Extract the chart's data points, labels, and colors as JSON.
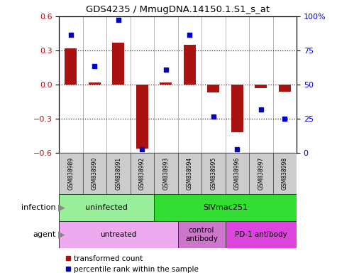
{
  "title": "GDS4235 / MmugDNA.14150.1.S1_s_at",
  "samples": [
    "GSM838989",
    "GSM838990",
    "GSM838991",
    "GSM838992",
    "GSM838993",
    "GSM838994",
    "GSM838995",
    "GSM838996",
    "GSM838997",
    "GSM838998"
  ],
  "bar_values": [
    0.32,
    0.02,
    0.37,
    -0.56,
    0.02,
    0.35,
    -0.07,
    -0.42,
    -0.03,
    -0.06
  ],
  "dot_values_left": [
    0.44,
    0.16,
    0.57,
    -0.57,
    0.13,
    0.44,
    -0.28,
    -0.57,
    -0.22,
    -0.3
  ],
  "bar_color": "#aa1111",
  "dot_color": "#0000cc",
  "ylim_left": [
    -0.6,
    0.6
  ],
  "ylim_right": [
    0,
    100
  ],
  "yticks_left": [
    -0.6,
    -0.3,
    0.0,
    0.3,
    0.6
  ],
  "yticks_right": [
    0,
    25,
    50,
    75,
    100
  ],
  "ytick_labels_right": [
    "0",
    "25",
    "50",
    "75",
    "100%"
  ],
  "hline_color": "#cc0000",
  "dotted_color": "#222222",
  "infection_groups": [
    {
      "label": "uninfected",
      "start": 0,
      "end": 3,
      "color": "#99ee99"
    },
    {
      "label": "SIVmac251",
      "start": 4,
      "end": 9,
      "color": "#33dd33"
    }
  ],
  "agent_groups": [
    {
      "label": "untreated",
      "start": 0,
      "end": 4,
      "color": "#eeaaee"
    },
    {
      "label": "control\nantibody",
      "start": 5,
      "end": 6,
      "color": "#cc77cc"
    },
    {
      "label": "PD-1 antibody",
      "start": 7,
      "end": 9,
      "color": "#dd44dd"
    }
  ],
  "legend_labels": [
    "transformed count",
    "percentile rank within the sample"
  ],
  "bg_color": "#ffffff",
  "sample_bg": "#cccccc"
}
